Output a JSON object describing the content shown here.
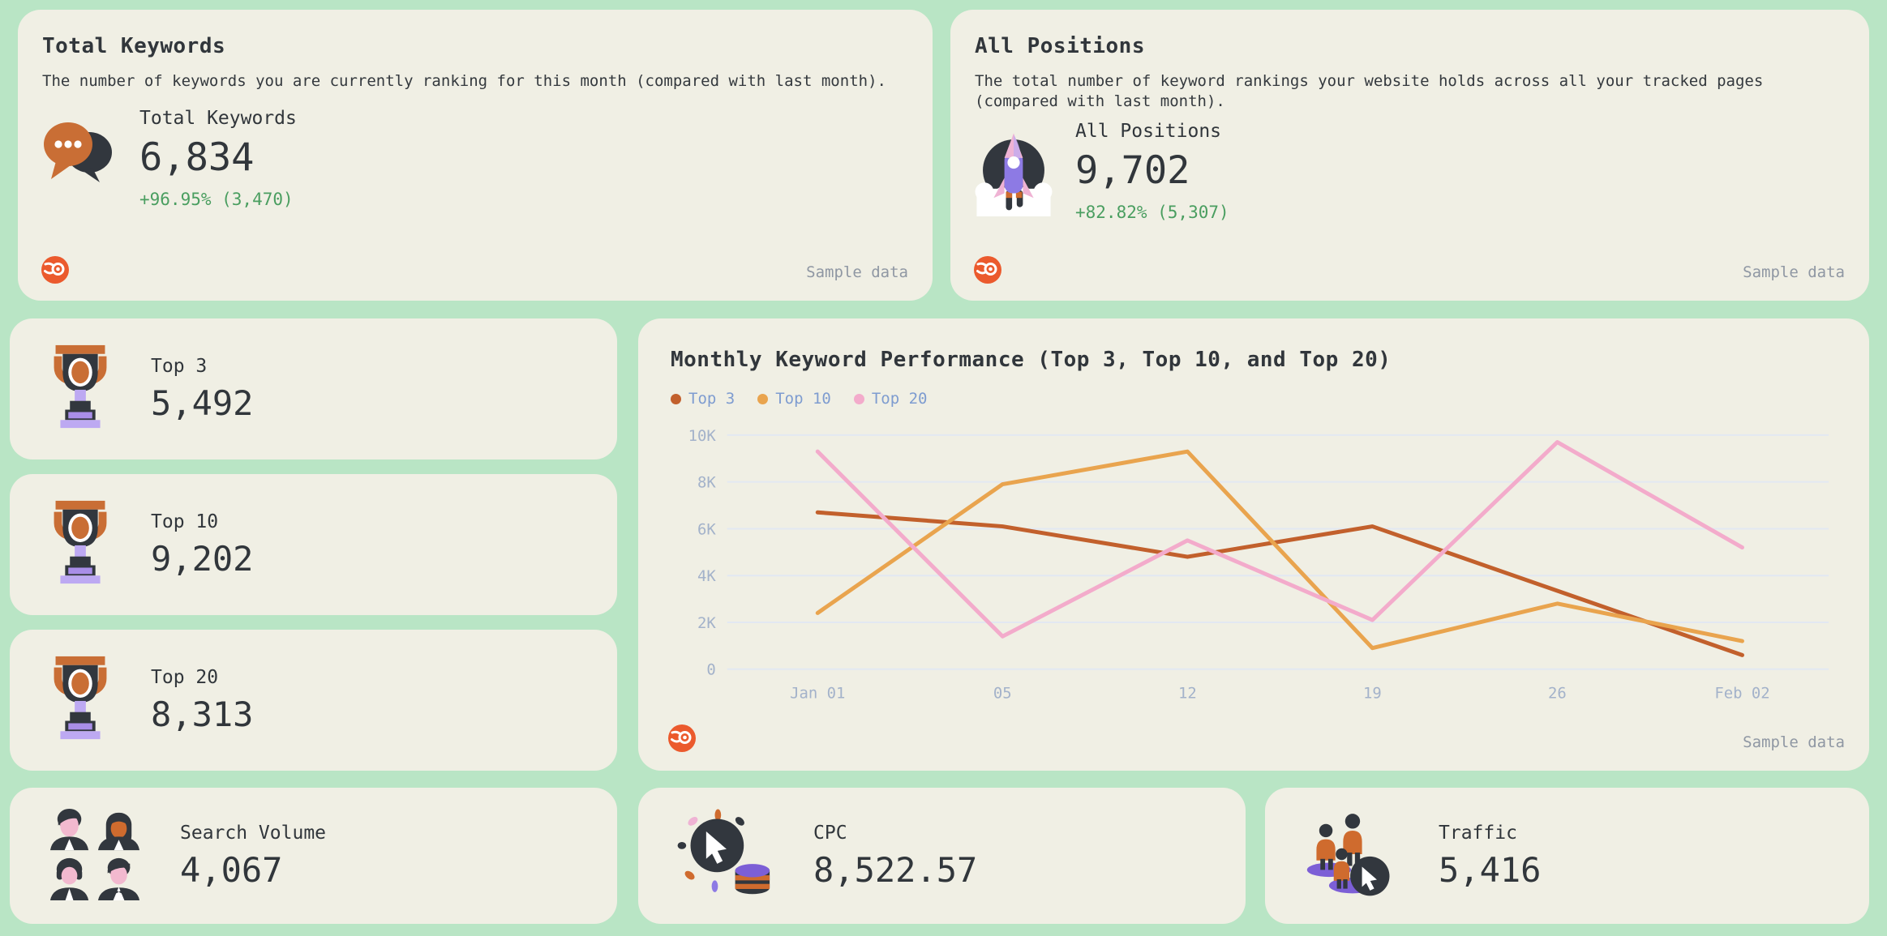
{
  "cards": {
    "total_keywords": {
      "title": "Total Keywords",
      "description": "The number of keywords you are currently ranking for this month (compared with last month).",
      "label": "Total Keywords",
      "value": "6,834",
      "delta": "+96.95% (3,470)",
      "sample_label": "Sample data"
    },
    "all_positions": {
      "title": "All Positions",
      "description": "The total number of keyword rankings your website holds across all your tracked pages (compared with last month).",
      "label": "All Positions",
      "value": "9,702",
      "delta": "+82.82% (5,307)",
      "sample_label": "Sample data"
    },
    "top3": {
      "label": "Top 3",
      "value": "5,492"
    },
    "top10": {
      "label": "Top 10",
      "value": "9,202"
    },
    "top20": {
      "label": "Top 20",
      "value": "8,313"
    },
    "search_volume": {
      "label": "Search Volume",
      "value": "4,067"
    },
    "cpc": {
      "label": "CPC",
      "value": "8,522.57"
    },
    "traffic": {
      "label": "Traffic",
      "value": "5,416"
    }
  },
  "chart": {
    "title": "Monthly Keyword Performance (Top 3, Top 10, and Top 20)",
    "sample_label": "Sample data"
  },
  "chart_data": {
    "type": "line",
    "categories": [
      "Jan 01",
      "05",
      "12",
      "19",
      "26",
      "Feb 02"
    ],
    "series": [
      {
        "name": "Top 3",
        "color": "#c2602c",
        "values": [
          6700,
          6100,
          4800,
          6100,
          3350,
          600
        ]
      },
      {
        "name": "Top 10",
        "color": "#e9a44e",
        "values": [
          2400,
          7900,
          9300,
          900,
          2800,
          1200
        ]
      },
      {
        "name": "Top 20",
        "color": "#f3abcb",
        "values": [
          9300,
          1400,
          5500,
          2100,
          9700,
          5200
        ]
      }
    ],
    "title": "Monthly Keyword Performance (Top 3, Top 10, and Top 20)",
    "xlabel": "",
    "ylabel": "",
    "ylim": [
      0,
      10000
    ],
    "yticks": [
      {
        "value": 0,
        "label": "0"
      },
      {
        "value": 2000,
        "label": "2K"
      },
      {
        "value": 4000,
        "label": "4K"
      },
      {
        "value": 6000,
        "label": "6K"
      },
      {
        "value": 8000,
        "label": "8K"
      },
      {
        "value": 10000,
        "label": "10K"
      }
    ],
    "grid": "horizontal",
    "legend_position": "top-left"
  },
  "colors": {
    "page_background": "#b9e5c5",
    "card_background": "#f0efe4",
    "ink": "#31363b",
    "muted": "#8f97a3",
    "delta_green": "#4a9e60",
    "semrush_orange": "#eb5a2d",
    "legend_text": "#7e9cd0",
    "axis_text": "#a3b2ca",
    "gridline": "#e2e8f2"
  }
}
